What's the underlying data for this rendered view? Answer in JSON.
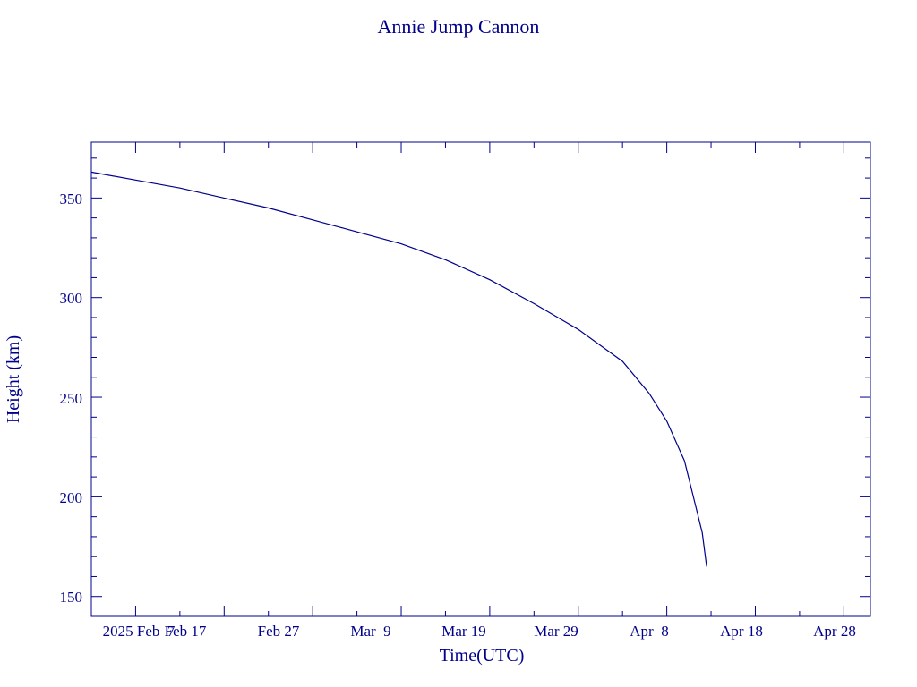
{
  "chart_data": {
    "type": "line",
    "title": "Annie Jump Cannon",
    "xlabel": "Time(UTC)",
    "ylabel": "Height (km)",
    "x_tick_labels": [
      "2025 Feb  7",
      "Feb 17",
      "Feb 27",
      "Mar  9",
      "Mar 19",
      "Mar 29",
      "Apr  8",
      "Apr 18",
      "Apr 28"
    ],
    "y_tick_labels": [
      "150",
      "200",
      "250",
      "300",
      "350"
    ],
    "ylim": [
      140,
      378
    ],
    "xlim": [
      "2025-02-02",
      "2025-05-01"
    ],
    "grid": false,
    "color": "#00008b",
    "series": [
      {
        "x": [
          "2025-02-02",
          "2025-02-07",
          "2025-02-12",
          "2025-02-17",
          "2025-02-22",
          "2025-02-27",
          "2025-03-04",
          "2025-03-09",
          "2025-03-14",
          "2025-03-19",
          "2025-03-24",
          "2025-03-29",
          "2025-04-03",
          "2025-04-06",
          "2025-04-08",
          "2025-04-10",
          "2025-04-11",
          "2025-04-12",
          "2025-04-12T12:00"
        ],
        "y": [
          363,
          359,
          355,
          350,
          345,
          339,
          333,
          327,
          319,
          309,
          297,
          284,
          268,
          252,
          238,
          218,
          200,
          182,
          165
        ]
      }
    ]
  }
}
